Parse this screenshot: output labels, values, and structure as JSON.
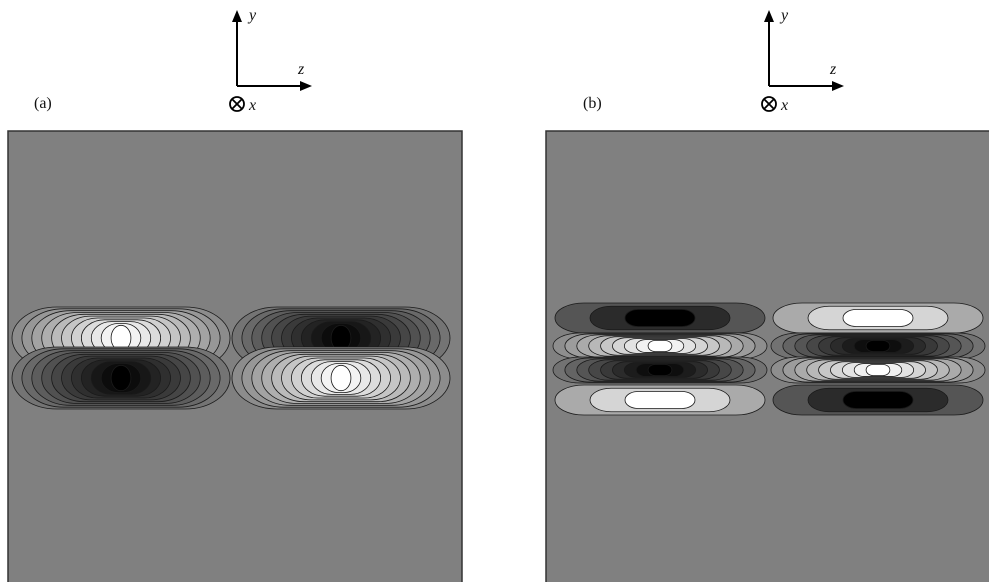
{
  "panels": [
    {
      "label": "(a)",
      "axes": {
        "up": "y",
        "right": "z",
        "out": "x"
      },
      "contour_pattern": "two-layer"
    },
    {
      "label": "(b)",
      "axes": {
        "up": "y",
        "right": "z",
        "out": "x"
      },
      "contour_pattern": "four-layer"
    }
  ],
  "colors": {
    "background_field": "#808080",
    "positive_lobe": "#ffffff",
    "negative_lobe": "#000000",
    "contour_line": "#1a1a1a",
    "frame": "#333333"
  }
}
